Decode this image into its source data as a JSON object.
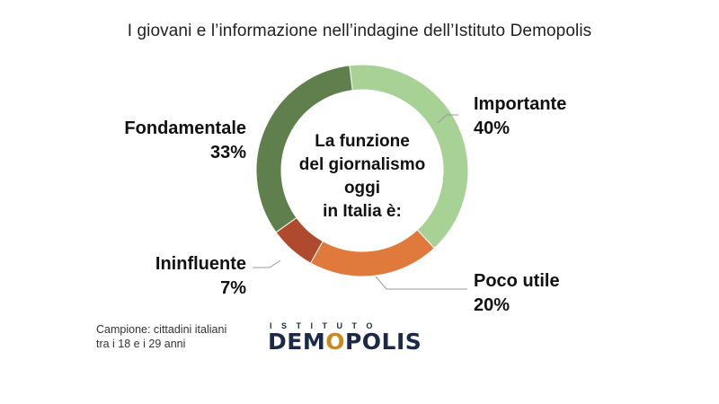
{
  "title": "I giovani e l’informazione nell’indagine dell’Istituto Demopolis",
  "center_text": [
    "La funzione",
    "del giornalismo",
    "oggi",
    "in Italia è:"
  ],
  "chart_data": {
    "type": "pie",
    "slices": [
      {
        "name": "Importante",
        "value": 40,
        "label": "40%",
        "color": "#a8d196"
      },
      {
        "name": "Poco utile",
        "value": 20,
        "label": "20%",
        "color": "#e07a3c"
      },
      {
        "name": "Ininfluente",
        "value": 7,
        "label": "7%",
        "color": "#b04a2f"
      },
      {
        "name": "Fondamentale",
        "value": 33,
        "label": "33%",
        "color": "#5f7f4d"
      }
    ]
  },
  "source": [
    "Campione: cittadini italiani",
    "tra i 18 e i 29 anni"
  ],
  "logo": {
    "top": "ISTITUTO",
    "main_a": "DEM",
    "main_o": "O",
    "main_b": "POLIS"
  }
}
